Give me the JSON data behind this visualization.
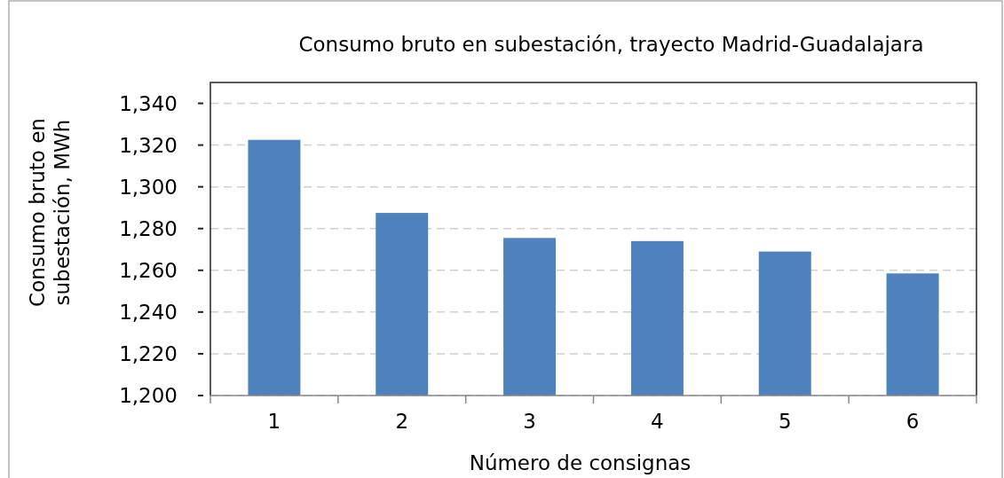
{
  "chart_data": {
    "type": "bar",
    "title": "Consumo bruto  en subestación, trayecto Madrid-Guadalajara",
    "xlabel": "Número de consignas",
    "ylabel": "Consumo bruto en subestación, MWh",
    "categories": [
      "1",
      "2",
      "3",
      "4",
      "5",
      "6"
    ],
    "values": [
      1322.5,
      1287.5,
      1275.5,
      1274,
      1269,
      1258.5
    ],
    "color": "#4f81bd",
    "ylim": [
      1200,
      1350
    ],
    "yticks": [
      {
        "value": 1200,
        "label": "1,200"
      },
      {
        "value": 1220,
        "label": "1,220"
      },
      {
        "value": 1240,
        "label": "1,240"
      },
      {
        "value": 1260,
        "label": "1,260"
      },
      {
        "value": 1280,
        "label": "1,280"
      },
      {
        "value": 1300,
        "label": "1,300"
      },
      {
        "value": 1320,
        "label": "1,320"
      },
      {
        "value": 1340,
        "label": "1,340"
      }
    ],
    "grid": "y"
  }
}
